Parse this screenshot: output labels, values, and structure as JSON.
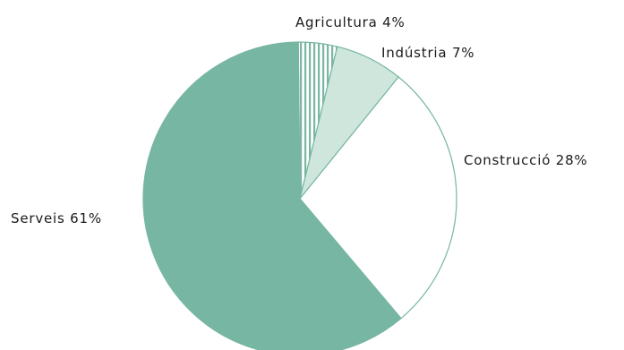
{
  "chart_data": {
    "type": "pie",
    "title": "",
    "slices": [
      {
        "label": "Agricultura",
        "value": 4,
        "display": "Agricultura 4%",
        "fill": "stripes",
        "color": "#7ab6a3"
      },
      {
        "label": "Indústria",
        "value": 7,
        "display": "Indústria 7%",
        "fill": "solid",
        "color": "#cfe6dd"
      },
      {
        "label": "Construcció",
        "value": 28,
        "display": "Construcció 28%",
        "fill": "solid",
        "color": "#ffffff"
      },
      {
        "label": "Serveis",
        "value": 61,
        "display": "Serveis 61%",
        "fill": "solid",
        "color": "#77b6a2"
      }
    ],
    "stroke_color": "#77b6a2",
    "legend": "none"
  }
}
